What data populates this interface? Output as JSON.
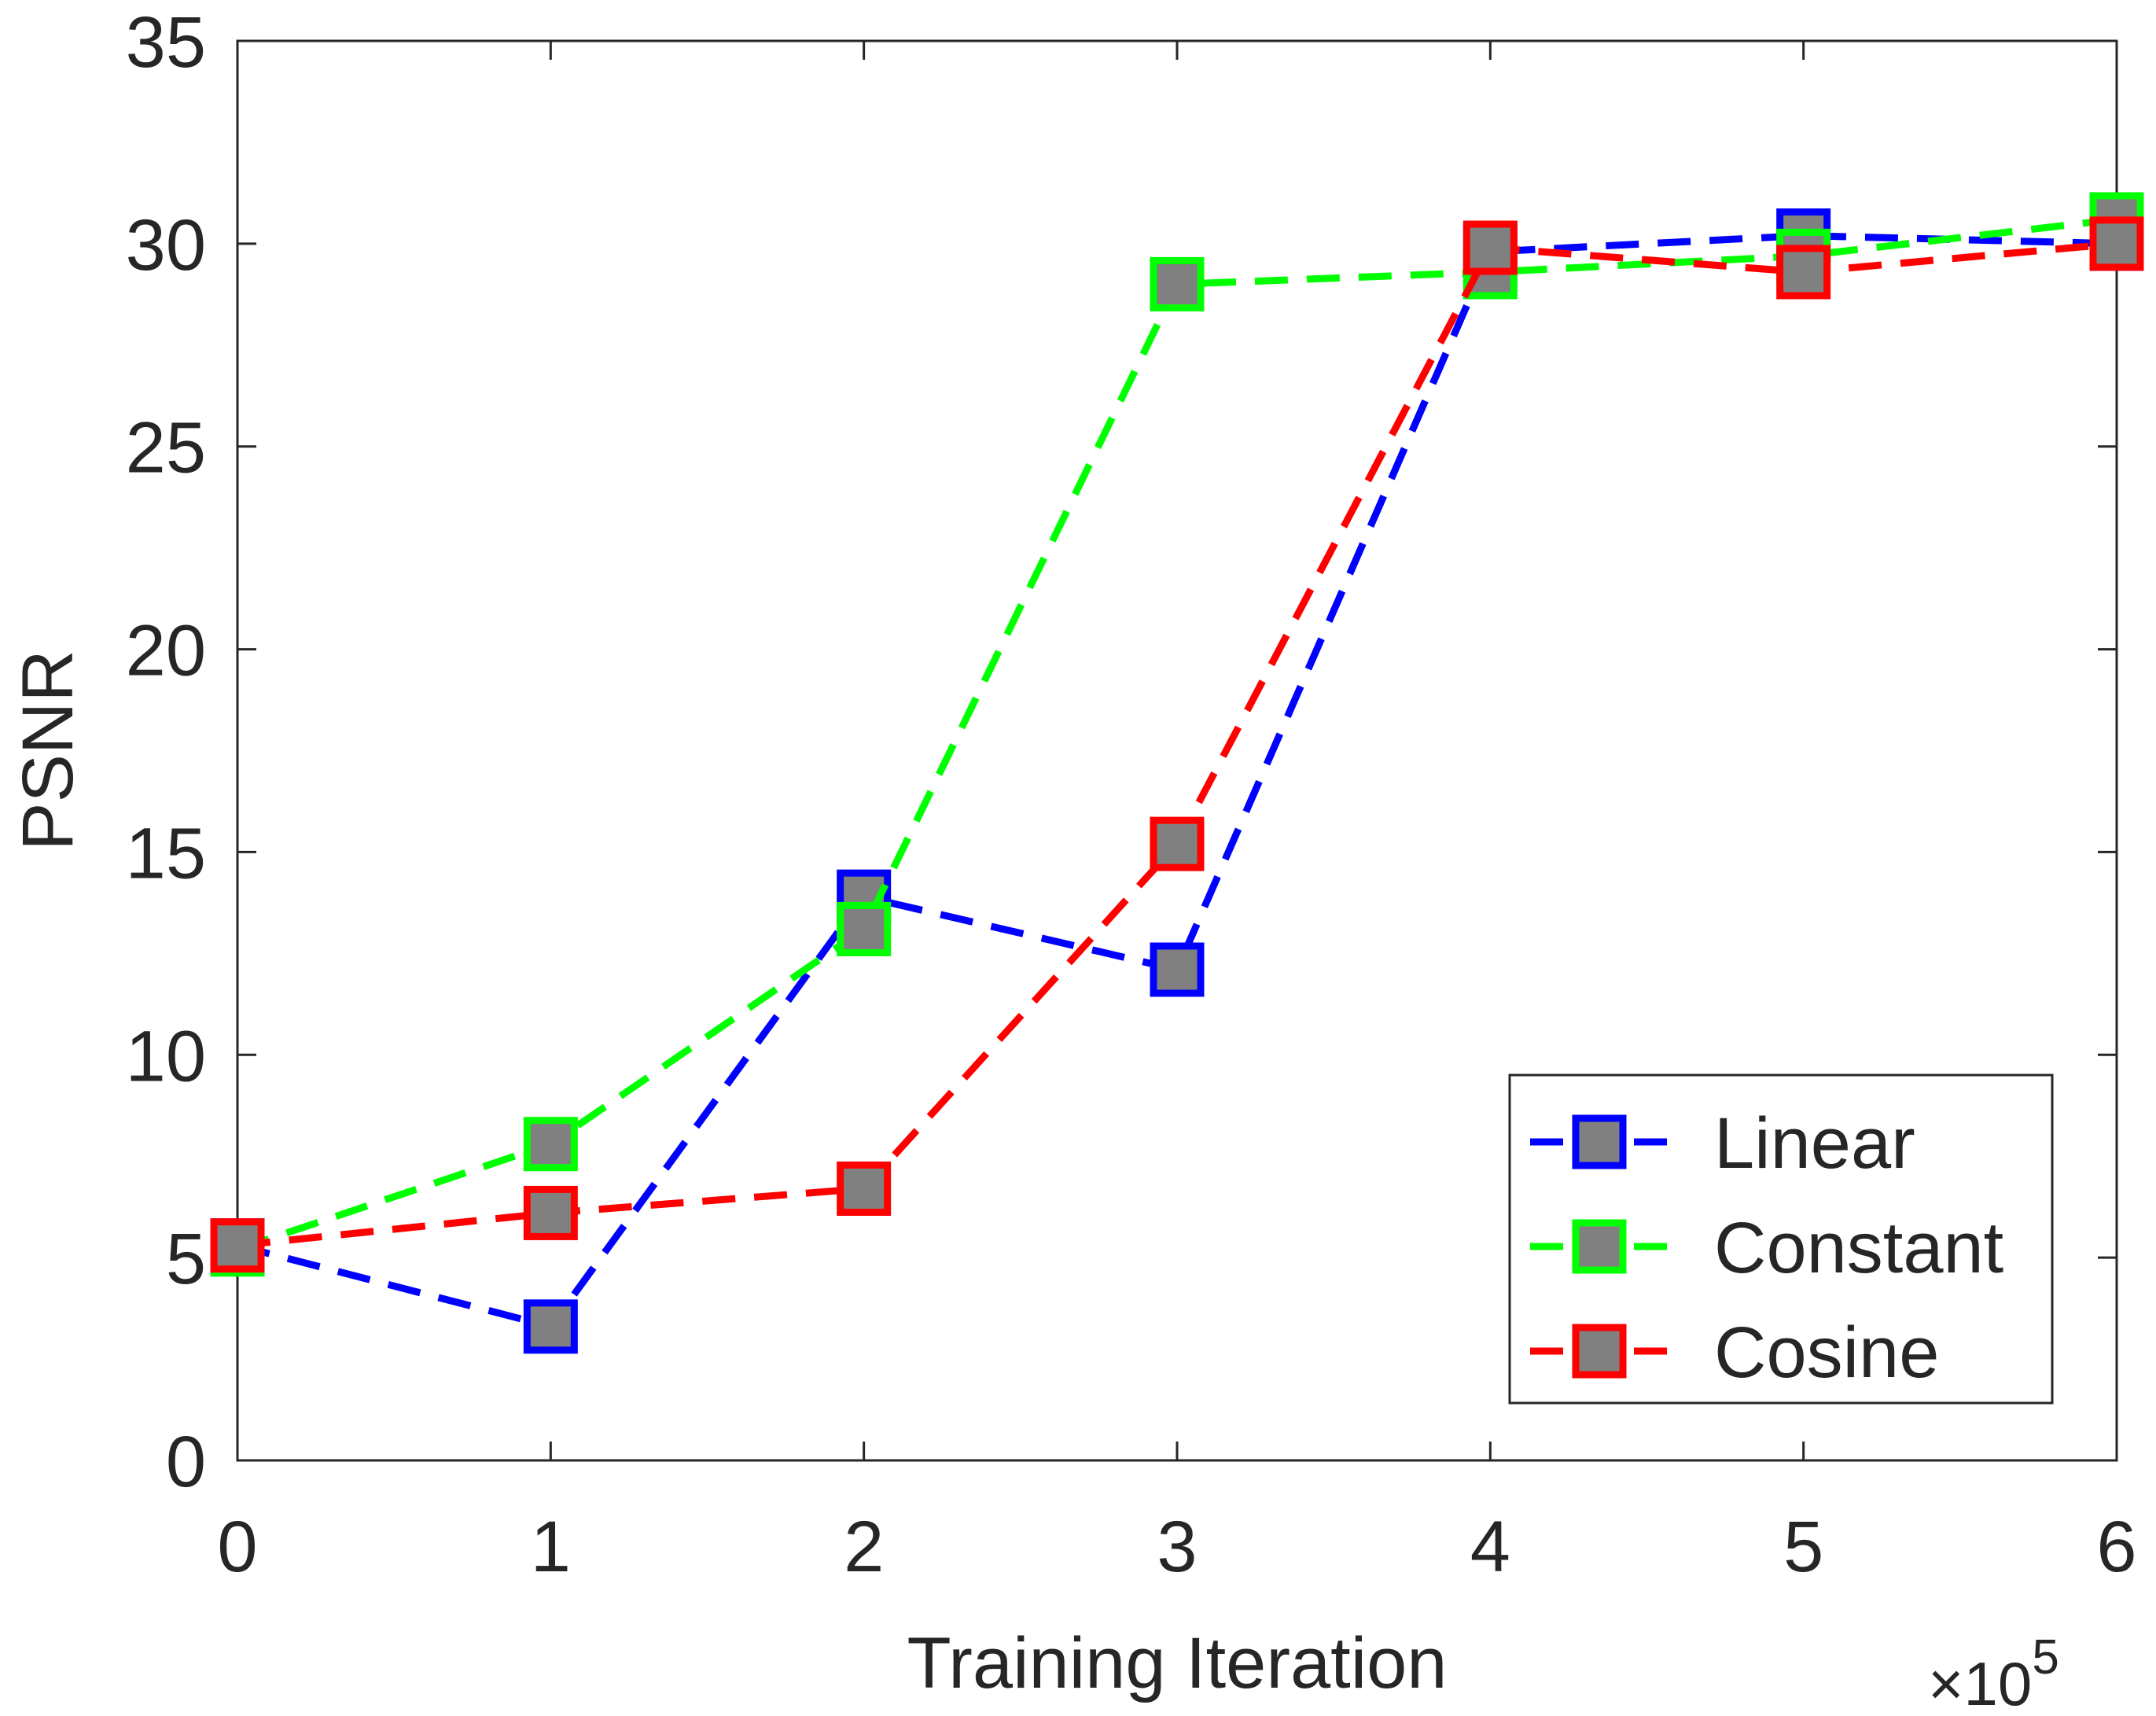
{
  "chart_data": {
    "type": "line",
    "title": "",
    "xlabel": "Training Iteration",
    "ylabel": "PSNR",
    "x_exponent_base": "×10",
    "x_exponent_power": "5",
    "x": [
      0,
      1,
      2,
      3,
      4,
      5,
      6
    ],
    "xlim": [
      0,
      6
    ],
    "ylim": [
      0,
      35
    ],
    "x_ticks": [
      0,
      1,
      2,
      3,
      4,
      5,
      6
    ],
    "y_ticks": [
      0,
      5,
      10,
      15,
      20,
      25,
      30,
      35
    ],
    "grid": false,
    "legend_position": "bottom-right",
    "marker_fill": "#808080",
    "series": [
      {
        "name": "Linear",
        "color": "#0000ff",
        "values": [
          5.3,
          3.3,
          13.9,
          12.1,
          29.8,
          30.2,
          30.0
        ]
      },
      {
        "name": "Constant",
        "color": "#00ff00",
        "values": [
          5.2,
          7.8,
          13.1,
          29.0,
          29.3,
          29.7,
          30.6
        ]
      },
      {
        "name": "Cosine",
        "color": "#ff0000",
        "values": [
          5.3,
          6.1,
          6.7,
          15.2,
          29.9,
          29.3,
          30.0
        ]
      }
    ]
  }
}
